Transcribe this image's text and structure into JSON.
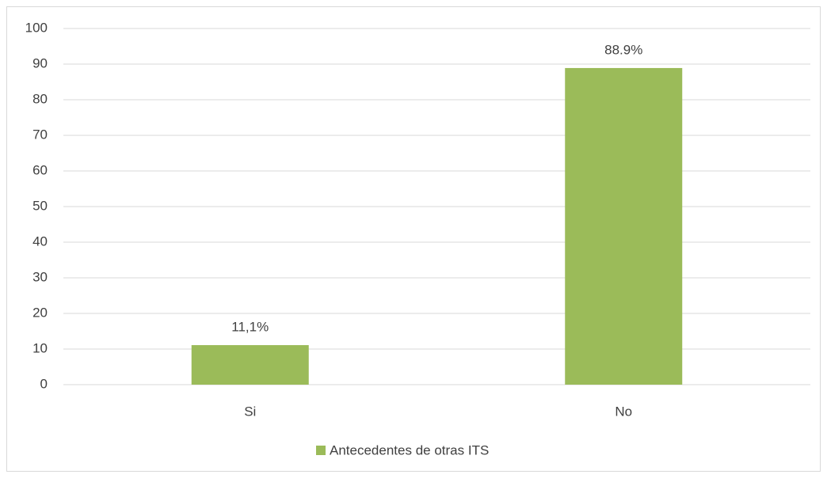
{
  "chart_data": {
    "type": "bar",
    "categories": [
      "Si",
      "No"
    ],
    "series": [
      {
        "name": "Antecedentes de otras ITS",
        "color": "#9bbb59",
        "values": [
          11.1,
          88.9
        ],
        "value_labels": [
          "11,1%",
          "88.9%"
        ]
      }
    ],
    "ylim": [
      0,
      100
    ],
    "yticks": [
      0,
      10,
      20,
      30,
      40,
      50,
      60,
      70,
      80,
      90,
      100
    ],
    "grid": true,
    "legend": "bottom"
  }
}
